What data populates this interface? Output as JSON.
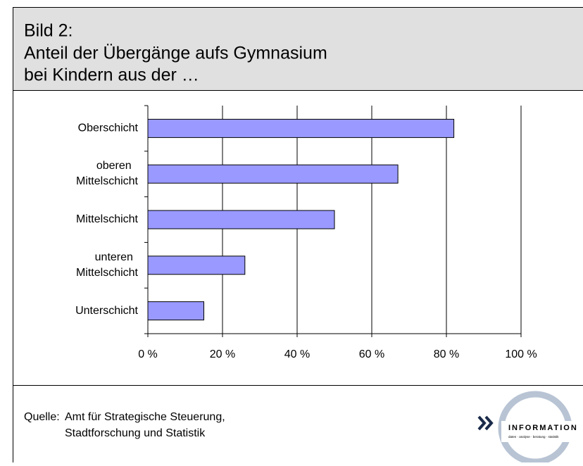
{
  "header": {
    "lines": [
      "Bild 2:",
      "Anteil der Übergänge aufs Gymnasium",
      "bei Kindern aus der …"
    ]
  },
  "chart_data": {
    "type": "bar",
    "orientation": "horizontal",
    "categories": [
      "Oberschicht",
      "oberen Mittelschicht",
      "Mittelschicht",
      "unteren Mittelschicht",
      "Unterschicht"
    ],
    "values": [
      82,
      67,
      50,
      26,
      15
    ],
    "color": "#9999ff",
    "xlim": [
      0,
      100
    ],
    "xticks": [
      {
        "value": 0,
        "label": "0 %"
      },
      {
        "value": 20,
        "label": "20 %"
      },
      {
        "value": 40,
        "label": "40 %"
      },
      {
        "value": 60,
        "label": "60 %"
      },
      {
        "value": 80,
        "label": "80 %"
      },
      {
        "value": 100,
        "label": "100 %"
      }
    ],
    "grid": true
  },
  "footer": {
    "source_label": "Quelle:",
    "source_lines": [
      "Amt für Strategische Steuerung,",
      "Stadtforschung und Statistik"
    ],
    "logo_text": "INFORMATION",
    "logo_tagline": "daten · analyse · beratung · statistik"
  }
}
